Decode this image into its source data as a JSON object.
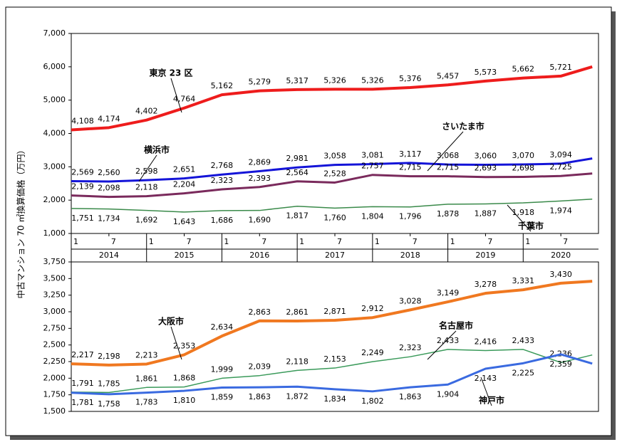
{
  "ylabel": "中古マンション 70 ㎡換算価格（万円）",
  "chart_data": [
    {
      "type": "line",
      "x": [
        0,
        6,
        12,
        18,
        24,
        30,
        36,
        42,
        48,
        54,
        60,
        66,
        72,
        78,
        83
      ],
      "xlim": [
        0,
        84
      ],
      "xticks": [
        {
          "value": 0,
          "label": "1"
        },
        {
          "value": 6,
          "label": "7"
        },
        {
          "value": 12,
          "label": "1"
        },
        {
          "value": 18,
          "label": "7"
        },
        {
          "value": 24,
          "label": "1"
        },
        {
          "value": 30,
          "label": "7"
        },
        {
          "value": 36,
          "label": "1"
        },
        {
          "value": 42,
          "label": "7"
        },
        {
          "value": 48,
          "label": "1"
        },
        {
          "value": 54,
          "label": "7"
        },
        {
          "value": 60,
          "label": "1"
        },
        {
          "value": 66,
          "label": "7"
        },
        {
          "value": 72,
          "label": "1"
        },
        {
          "value": 78,
          "label": "7"
        }
      ],
      "years": [
        "2014",
        "2015",
        "2016",
        "2017",
        "2018",
        "2019",
        "2020"
      ],
      "ylim": [
        1000,
        7000
      ],
      "yticks": [
        {
          "value": 1000,
          "label": "1,000"
        },
        {
          "value": 2000,
          "label": "2,000"
        },
        {
          "value": 3000,
          "label": "3,000"
        },
        {
          "value": 4000,
          "label": "4,000"
        },
        {
          "value": 5000,
          "label": "5,000"
        },
        {
          "value": 6000,
          "label": "6,000"
        },
        {
          "value": 7000,
          "label": "7,000"
        }
      ],
      "series": [
        {
          "name": "東京 23 区",
          "color": "#ee1c1c",
          "values": [
            4108,
            4174,
            4402,
            4764,
            5162,
            5279,
            5317,
            5326,
            5326,
            5376,
            5457,
            5573,
            5662,
            5721,
            6000
          ],
          "value_labels": [
            "4,108",
            "4,174",
            "4,402",
            "4,764",
            "5,162",
            "5,279",
            "5,317",
            "5,326",
            "5,326",
            "5,376",
            "5,457",
            "5,573",
            "5,662",
            "5,721",
            null
          ]
        },
        {
          "name": "さいたま市",
          "color": "#1414d8",
          "values": [
            2569,
            2560,
            2598,
            2651,
            2768,
            2869,
            2981,
            3058,
            3081,
            3117,
            3068,
            3060,
            3070,
            3094,
            3250
          ],
          "value_labels": [
            "2,569",
            "2,560",
            "2,598",
            "2,651",
            "2,768",
            "2,869",
            "2,981",
            "3,058",
            "3,081",
            "3,117",
            "3,068",
            "3,060",
            "3,070",
            "3,094",
            null
          ]
        },
        {
          "name": "横浜市",
          "color": "#7a2a5c",
          "values": [
            2139,
            2098,
            2118,
            2204,
            2323,
            2393,
            2564,
            2528,
            2757,
            2715,
            2715,
            2693,
            2698,
            2725,
            2800
          ],
          "value_labels": [
            "2,139",
            "2,098",
            "2,118",
            "2,204",
            "2,323",
            "2,393",
            "2,564",
            "2,528",
            "2,757",
            "2,715",
            "2,715",
            "2,693",
            "2,698",
            "2,725",
            null
          ]
        },
        {
          "name": "千葉市",
          "color": "#3a8a4a",
          "values": [
            1751,
            1734,
            1692,
            1643,
            1686,
            1690,
            1817,
            1760,
            1804,
            1796,
            1878,
            1887,
            1918,
            1974,
            2030
          ],
          "value_labels": [
            "1,751",
            "1,734",
            "1,692",
            "1,643",
            "1,686",
            "1,690",
            "1,817",
            "1,760",
            "1,804",
            "1,796",
            "1,878",
            "1,887",
            "1,918",
            "1,974",
            null
          ]
        }
      ]
    },
    {
      "type": "line",
      "x": [
        0,
        6,
        12,
        18,
        24,
        30,
        36,
        42,
        48,
        54,
        60,
        66,
        72,
        78,
        83
      ],
      "xlim": [
        0,
        84
      ],
      "ylim": [
        1500,
        3750
      ],
      "yticks": [
        {
          "value": 1500,
          "label": "1,500"
        },
        {
          "value": 1750,
          "label": "1,750"
        },
        {
          "value": 2000,
          "label": "2,000"
        },
        {
          "value": 2250,
          "label": "2,250"
        },
        {
          "value": 2500,
          "label": "2,500"
        },
        {
          "value": 2750,
          "label": "2,750"
        },
        {
          "value": 3000,
          "label": "3,000"
        },
        {
          "value": 3250,
          "label": "3,250"
        },
        {
          "value": 3500,
          "label": "3,500"
        },
        {
          "value": 3750,
          "label": "3,750"
        }
      ],
      "series": [
        {
          "name": "大阪市",
          "color": "#f07820",
          "values": [
            2217,
            2198,
            2213,
            2353,
            2634,
            2863,
            2861,
            2871,
            2912,
            3028,
            3149,
            3278,
            3331,
            3430,
            3460
          ],
          "value_labels": [
            "2,217",
            "2,198",
            "2,213",
            "2,353",
            "2,634",
            "2,863",
            "2,861",
            "2,871",
            "2,912",
            "3,028",
            "3,149",
            "3,278",
            "3,331",
            "3,430",
            null
          ]
        },
        {
          "name": "名古屋市",
          "color": "#3a9a5a",
          "values": [
            1791,
            1785,
            1861,
            1868,
            1999,
            2039,
            2118,
            2153,
            2249,
            2323,
            2433,
            2416,
            2433,
            2236,
            2350
          ],
          "value_labels": [
            "1,791",
            "1,785",
            "1,861",
            "1,868",
            "1,999",
            "2,039",
            "2,118",
            "2,153",
            "2,249",
            "2,323",
            "2,433",
            "2,416",
            "2,433",
            "2,236",
            null
          ]
        },
        {
          "name": "神戸市",
          "color": "#3a6ae0",
          "values": [
            1781,
            1758,
            1783,
            1810,
            1859,
            1863,
            1872,
            1834,
            1802,
            1863,
            1904,
            2143,
            2225,
            2359,
            2220
          ],
          "value_labels": [
            "1,781",
            "1,758",
            "1,783",
            "1,810",
            "1,859",
            "1,863",
            "1,872",
            "1,834",
            "1,802",
            "1,863",
            "1,904",
            "2,143",
            "2,225",
            "2,359",
            null
          ]
        }
      ]
    }
  ]
}
